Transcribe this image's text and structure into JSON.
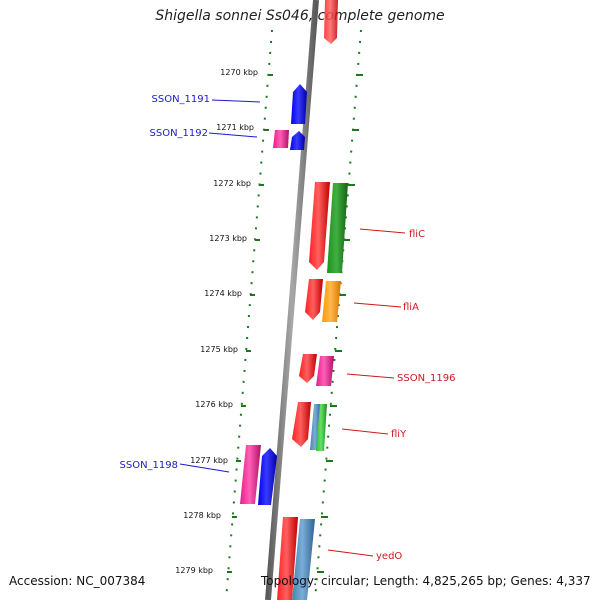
{
  "title": "Shigella sonnei Ss046, complete genome",
  "accession": "Accession: NC_007384",
  "topology": "Topology: circular; Length: 4,825,265 bp; Genes: 4,337",
  "colors": {
    "backbone": "#808080",
    "tick": "#1a7a1a",
    "label_left": "#1a1acc",
    "label_right": "#cc1a1a"
  },
  "kbp_labels": [
    "1270 kbp",
    "1271 kbp",
    "1272 kbp",
    "1273 kbp",
    "1274 kbp",
    "1275 kbp",
    "1276 kbp",
    "1277 kbp",
    "1278 kbp",
    "1279 kbp"
  ],
  "gene_labels": {
    "left": [
      "SSON_1191",
      "SSON_1192",
      "SSON_1198"
    ],
    "right": [
      "fliC",
      "fliA",
      "SSON_1196",
      "fliY",
      "yedO"
    ]
  }
}
